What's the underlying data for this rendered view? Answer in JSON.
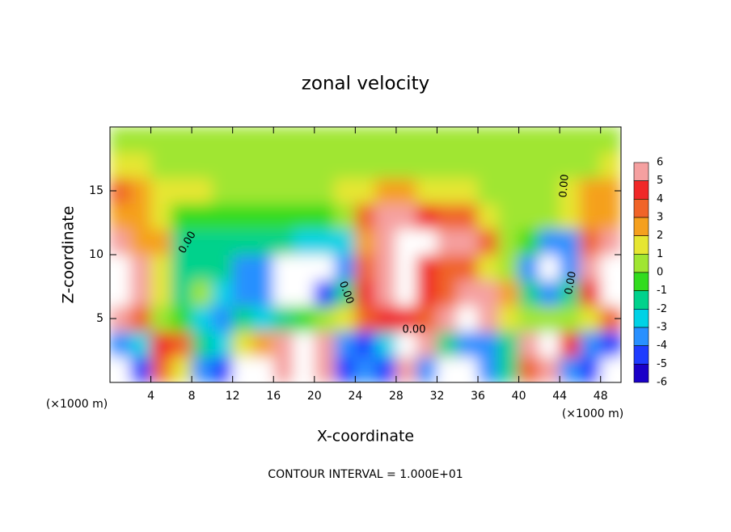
{
  "chart_data": {
    "type": "heatmap",
    "title": "zonal velocity",
    "xlabel": "X-coordinate",
    "ylabel": "Z-coordinate",
    "x_unit_label": "(×1000 m)",
    "xlim": [
      0,
      50
    ],
    "ylim": [
      0,
      20
    ],
    "xticks": [
      4,
      8,
      12,
      16,
      20,
      24,
      28,
      32,
      36,
      40,
      44,
      48
    ],
    "yticks": [
      5,
      10,
      15
    ],
    "columns_x": [
      1,
      3,
      5,
      7,
      9,
      11,
      13,
      15,
      17,
      19,
      21,
      23,
      25,
      27,
      29,
      31,
      33,
      35,
      37,
      39,
      41,
      43,
      45,
      47,
      49
    ],
    "rows_z": [
      1,
      3,
      5,
      7,
      9,
      11,
      13,
      15,
      17,
      19
    ],
    "values": [
      [
        -7,
        -5,
        3,
        1,
        -4,
        -5,
        -7,
        -7,
        5,
        7,
        5,
        -5,
        -4,
        -5,
        5,
        -4,
        -7,
        -7,
        -4,
        -2,
        3,
        5,
        -4,
        -5,
        -7
      ],
      [
        -4,
        -3,
        4,
        3,
        -2,
        -3,
        1,
        2,
        5,
        7,
        5,
        -4,
        -5,
        -3,
        7,
        5,
        -2,
        -4,
        -4,
        -2,
        5,
        7,
        4,
        -4,
        -5
      ],
      [
        5,
        3,
        0,
        -1,
        -3,
        -4,
        -2,
        -3,
        -2,
        -1,
        0,
        1.5,
        3,
        4,
        4,
        3,
        5,
        6.5,
        5,
        1,
        0,
        0,
        0.5,
        1,
        3
      ],
      [
        7,
        5,
        1,
        -2,
        0,
        -3,
        -4,
        -4,
        -7,
        -7,
        -5,
        -2,
        4,
        5,
        6.5,
        4,
        3,
        5,
        6,
        2,
        -2,
        -4,
        -2,
        4,
        7
      ],
      [
        7,
        5,
        1,
        -1.5,
        -1.5,
        -1.5,
        -4,
        -4,
        -7,
        -7,
        -7,
        -4,
        3,
        5,
        6.5,
        4,
        3,
        3,
        1.5,
        0,
        -4,
        -7,
        -4,
        5,
        7
      ],
      [
        5,
        2,
        2,
        -1.5,
        -1.5,
        -1.5,
        -1.5,
        -1.5,
        -1.5,
        -3,
        -3,
        -3,
        2,
        5,
        7,
        7,
        5,
        5,
        3,
        0.5,
        -1,
        -4,
        -4,
        3,
        5
      ],
      [
        2.5,
        2,
        1.5,
        -1,
        -1,
        -1,
        -1,
        -1,
        -1,
        -1,
        -0.5,
        0.5,
        3,
        5,
        5,
        4,
        3,
        3,
        1,
        0.5,
        0.5,
        0.5,
        1.5,
        2,
        2
      ],
      [
        3,
        2.5,
        1.5,
        1.5,
        1,
        0.5,
        0.5,
        0.5,
        0.5,
        0.5,
        0.5,
        1,
        1.5,
        2,
        2,
        1.5,
        1,
        1,
        0.5,
        0.5,
        0.5,
        0.5,
        1.5,
        2,
        2
      ],
      [
        1,
        1,
        0.5,
        0.5,
        0.5,
        0.5,
        0.5,
        0.5,
        0.5,
        0.5,
        0.5,
        0.5,
        0.5,
        0.5,
        0.5,
        0.5,
        0.5,
        0.5,
        0.5,
        0.5,
        0.5,
        0.5,
        0.5,
        0.5,
        1
      ],
      [
        0.5,
        0.5,
        0.5,
        0.5,
        0.5,
        0.5,
        0.5,
        0.5,
        0,
        0,
        0,
        0,
        0,
        0.5,
        0.5,
        0.5,
        0.5,
        0.5,
        0.5,
        0.5,
        0.5,
        0.5,
        0.5,
        0.5,
        0.5
      ]
    ],
    "colorbar": {
      "levels": [
        6,
        5,
        4,
        3,
        2,
        1,
        0,
        -1,
        -2,
        -3,
        -4,
        -5,
        -6
      ],
      "colors": [
        "#f5a0a0",
        "#f02828",
        "#f06428",
        "#f5a01e",
        "#e6e632",
        "#a0e632",
        "#32dc1e",
        "#00d28c",
        "#00d2e6",
        "#2890ff",
        "#1e3cff",
        "#1a00c8",
        "#7a00a8"
      ],
      "extreme_color": "#ffffff"
    },
    "contour_labels": [
      "0.00",
      "0.00",
      "0.00",
      "0.00",
      "0.00"
    ],
    "contour_interval_label": "CONTOUR INTERVAL = 1.000E+01"
  }
}
